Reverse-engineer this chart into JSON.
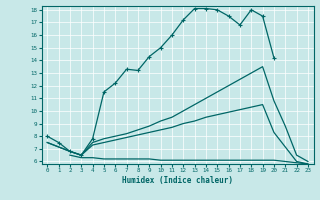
{
  "xlabel": "Humidex (Indice chaleur)",
  "bg_color": "#c8e8e8",
  "line_color": "#006666",
  "x_min": 0,
  "x_max": 23,
  "y_min": 6,
  "y_max": 18,
  "line1_x": [
    0,
    1,
    2,
    3,
    4,
    5,
    6,
    7,
    8,
    9,
    10,
    11,
    12,
    13,
    14,
    15,
    16,
    17,
    18,
    19,
    20
  ],
  "line1_y": [
    8.0,
    7.5,
    6.8,
    6.5,
    7.8,
    11.5,
    12.2,
    13.3,
    13.2,
    14.3,
    15.0,
    16.0,
    17.2,
    18.1,
    18.1,
    18.0,
    17.5,
    16.8,
    18.0,
    17.5,
    14.2
  ],
  "line2_x": [
    0,
    2,
    3,
    4,
    5,
    6,
    7,
    8,
    9,
    10,
    11,
    12,
    13,
    14,
    15,
    16,
    17,
    18,
    19,
    20,
    21,
    22,
    23
  ],
  "line2_y": [
    7.5,
    6.8,
    6.5,
    7.5,
    7.8,
    8.0,
    8.2,
    8.5,
    8.8,
    9.2,
    9.5,
    10.0,
    10.5,
    11.0,
    11.5,
    12.0,
    12.5,
    13.0,
    13.5,
    10.8,
    8.8,
    6.5,
    6.0
  ],
  "line3_x": [
    0,
    2,
    3,
    4,
    5,
    6,
    7,
    8,
    9,
    10,
    11,
    12,
    13,
    14,
    15,
    16,
    17,
    18,
    19,
    20,
    22,
    23
  ],
  "line3_y": [
    7.5,
    6.8,
    6.5,
    7.3,
    7.5,
    7.7,
    7.9,
    8.1,
    8.3,
    8.5,
    8.7,
    9.0,
    9.2,
    9.5,
    9.7,
    9.9,
    10.1,
    10.3,
    10.5,
    8.3,
    6.0,
    5.8
  ],
  "line4_x": [
    2,
    3,
    4,
    5,
    6,
    7,
    8,
    9,
    10,
    11,
    12,
    13,
    14,
    15,
    16,
    17,
    18,
    19,
    20,
    22,
    23
  ],
  "line4_y": [
    6.5,
    6.3,
    6.3,
    6.2,
    6.2,
    6.2,
    6.2,
    6.2,
    6.1,
    6.1,
    6.1,
    6.1,
    6.1,
    6.1,
    6.1,
    6.1,
    6.1,
    6.1,
    6.1,
    5.9,
    5.8
  ],
  "yticks": [
    6,
    7,
    8,
    9,
    10,
    11,
    12,
    13,
    14,
    15,
    16,
    17,
    18
  ],
  "xticks": [
    0,
    1,
    2,
    3,
    4,
    5,
    6,
    7,
    8,
    9,
    10,
    11,
    12,
    13,
    14,
    15,
    16,
    17,
    18,
    19,
    20,
    21,
    22,
    23
  ]
}
